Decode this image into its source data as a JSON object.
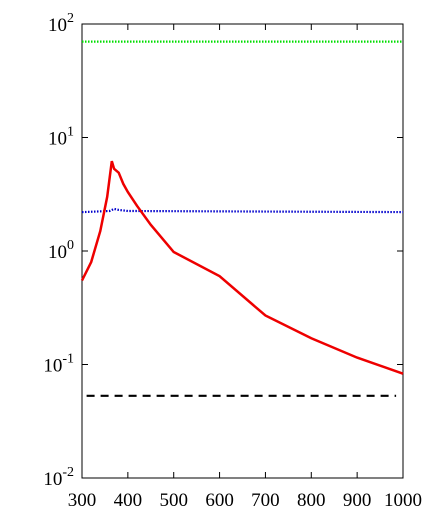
{
  "chart_data": {
    "type": "line",
    "log_y": true,
    "xlim": [
      300,
      1000
    ],
    "ylim": [
      0.01,
      100
    ],
    "xticks": [
      300,
      400,
      500,
      600,
      700,
      800,
      900,
      1000
    ],
    "yticks": [
      {
        "value": 0.01,
        "label": "10^-2"
      },
      {
        "value": 0.1,
        "label": "10^-1"
      },
      {
        "value": 1,
        "label": "10^0"
      },
      {
        "value": 10,
        "label": "10^1"
      },
      {
        "value": 100,
        "label": "10^2"
      }
    ],
    "series": [
      {
        "color": "#00dd00",
        "dash": "dotted",
        "x": [
          300,
          1000
        ],
        "values": [
          70,
          70
        ]
      },
      {
        "color": "#0000cc",
        "dash": "dotted",
        "x": [
          300,
          360,
          370,
          380,
          400,
          1000
        ],
        "values": [
          2.2,
          2.25,
          2.35,
          2.3,
          2.25,
          2.2
        ]
      },
      {
        "color": "#000000",
        "dash": "dashed",
        "x": [
          310,
          985
        ],
        "values": [
          0.053,
          0.053
        ]
      },
      {
        "color": "#ee0000",
        "dash": "solid",
        "x": [
          300,
          320,
          340,
          355,
          365,
          370,
          380,
          390,
          400,
          420,
          450,
          500,
          600,
          700,
          800,
          900,
          1000
        ],
        "values": [
          0.55,
          0.8,
          1.5,
          3,
          6.2,
          5.3,
          4.9,
          3.9,
          3.3,
          2.5,
          1.7,
          0.98,
          0.6,
          0.27,
          0.17,
          0.115,
          0.083
        ]
      }
    ]
  }
}
